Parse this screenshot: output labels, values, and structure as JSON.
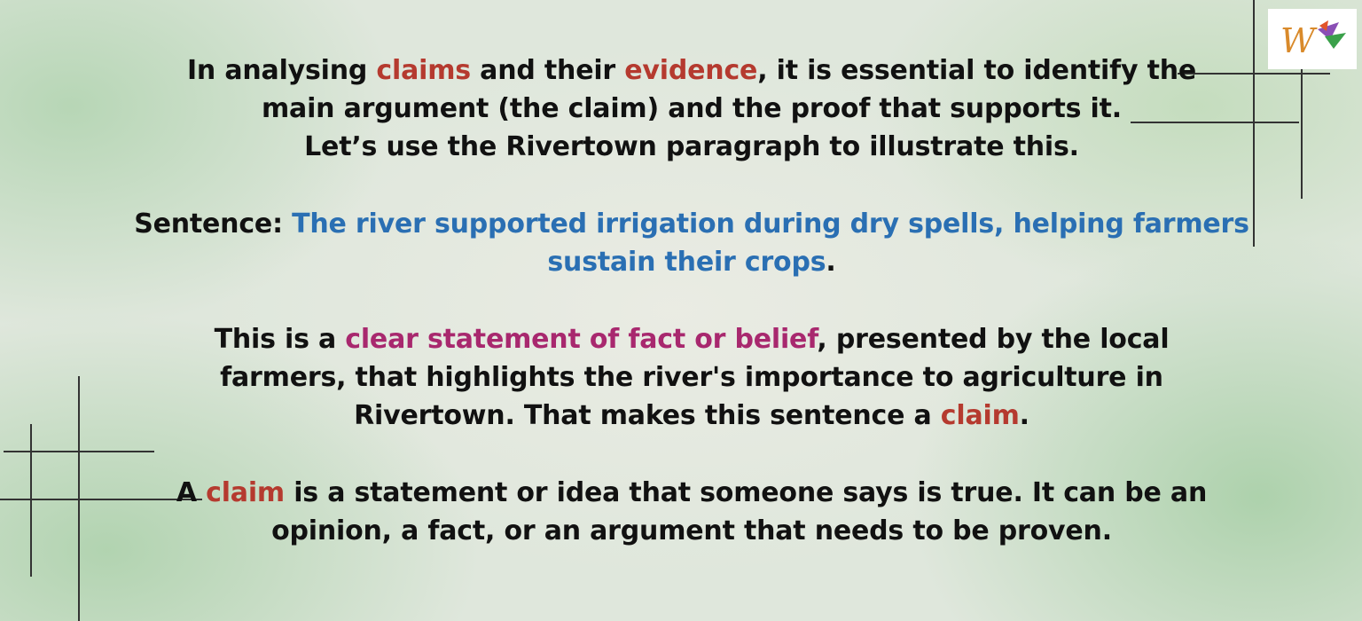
{
  "intro": {
    "part1": "In analysing ",
    "claims_word": "claims",
    "part2": " and their ",
    "evidence_word": "evidence",
    "part3": ", it is essential to identify the main argument (the claim) and the proof that supports it.",
    "line2": "Let’s use the Rivertown paragraph to illustrate this."
  },
  "sentence": {
    "label": "Sentence: ",
    "text": "The river supported irrigation during dry spells, helping farmers sustain their crops",
    "end": "."
  },
  "explanation": {
    "part1": "This is a ",
    "highlight": "clear statement of fact or belief",
    "part2": ", presented by the local farmers, that highlights the river's importance to agriculture in Rivertown. That makes this sentence a ",
    "claim_word": "claim",
    "end": "."
  },
  "definition": {
    "part1": "A ",
    "claim_word": "claim",
    "part2": " is a statement or idea that someone says is true. It can be an opinion, a fact, or an argument that needs to be proven."
  },
  "colors": {
    "red": "#b53a2f",
    "blue": "#2a6fb3",
    "magenta": "#a8286e"
  },
  "logo": {
    "icon": "w-logo-icon"
  }
}
